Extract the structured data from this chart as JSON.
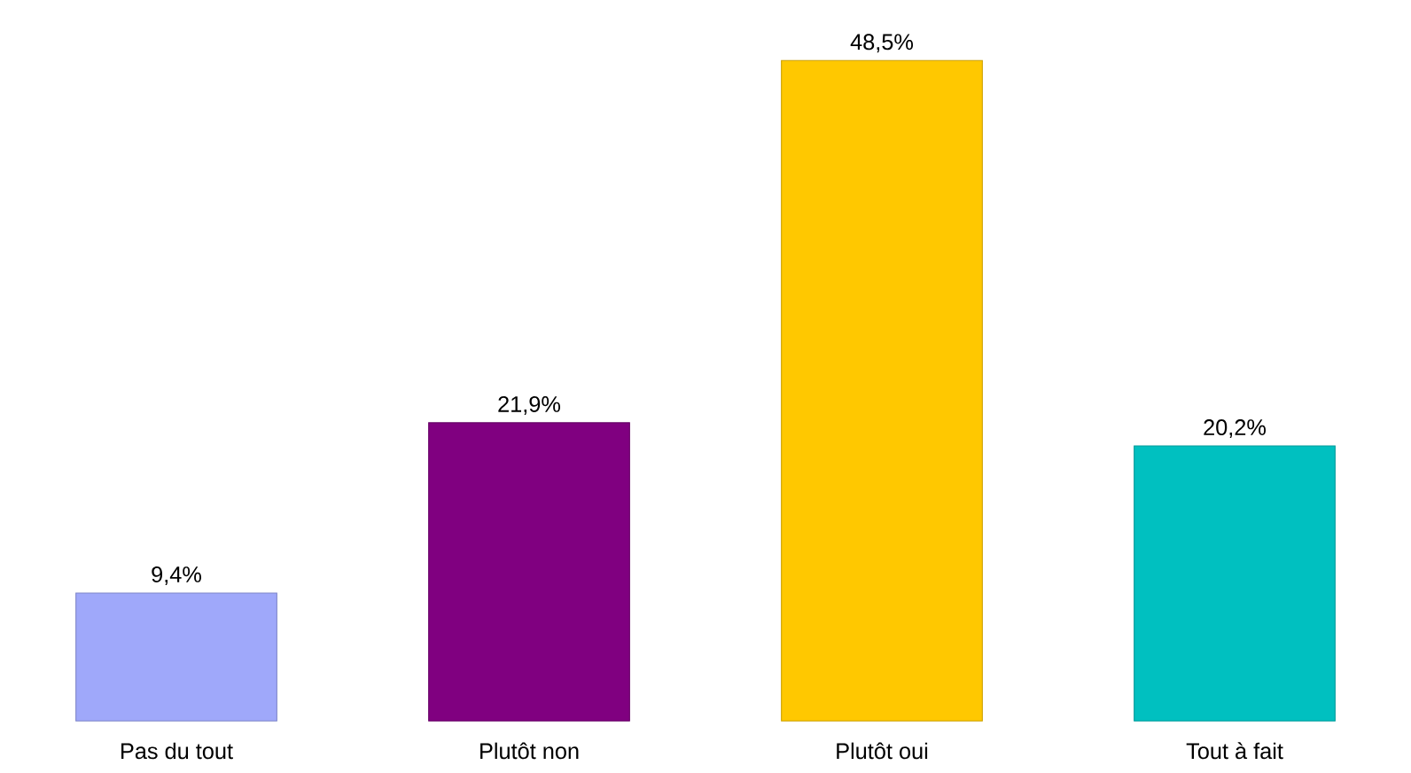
{
  "chart_data": {
    "type": "bar",
    "categories": [
      "Pas du tout",
      "Plutôt non",
      "Plutôt oui",
      "Tout à fait"
    ],
    "values": [
      9.4,
      21.9,
      48.5,
      20.2
    ],
    "colors": [
      "#9fa8fa",
      "#800080",
      "#ffc800",
      "#00c0c0"
    ],
    "value_labels": [
      "9,4%",
      "21,9%",
      "48,5%",
      "20,2%"
    ]
  }
}
